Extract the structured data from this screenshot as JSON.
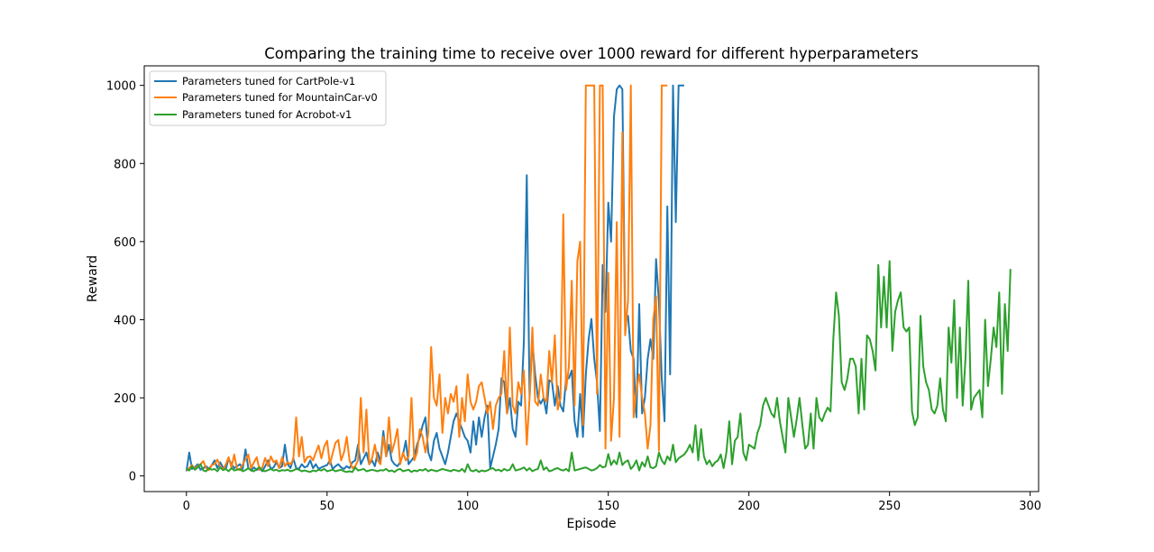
{
  "chart_data": {
    "type": "line",
    "title": "Comparing the training time to receive over 1000 reward for different hyperparameters",
    "xlabel": "Episode",
    "ylabel": "Reward",
    "xlim": [
      -15,
      303
    ],
    "ylim": [
      -40,
      1050
    ],
    "xticks": [
      0,
      50,
      100,
      150,
      200,
      250,
      300
    ],
    "yticks": [
      0,
      200,
      400,
      600,
      800,
      1000
    ],
    "legend_position": "upper-left",
    "grid": false,
    "series": [
      {
        "name": "Parameters tuned for CartPole-v1",
        "color": "#1f77b4",
        "values": [
          12,
          60,
          18,
          22,
          30,
          16,
          20,
          25,
          18,
          28,
          40,
          20,
          35,
          22,
          18,
          45,
          30,
          20,
          25,
          30,
          18,
          68,
          20,
          14,
          22,
          15,
          20,
          12,
          25,
          40,
          18,
          22,
          35,
          20,
          25,
          80,
          30,
          20,
          45,
          20,
          18,
          30,
          22,
          25,
          40,
          20,
          30,
          18,
          22,
          25,
          28,
          40,
          18,
          25,
          30,
          22,
          18,
          25,
          20,
          35,
          40,
          80,
          30,
          45,
          60,
          30,
          40,
          25,
          60,
          35,
          115,
          50,
          80,
          40,
          30,
          25,
          35,
          55,
          90,
          30,
          40,
          50,
          80,
          100,
          130,
          150,
          60,
          40,
          90,
          110,
          70,
          50,
          30,
          60,
          100,
          140,
          160,
          140,
          120,
          100,
          90,
          60,
          140,
          80,
          150,
          100,
          150,
          180,
          20,
          50,
          80,
          120,
          250,
          240,
          160,
          200,
          120,
          100,
          190,
          180,
          345,
          770,
          200,
          345,
          260,
          200,
          185,
          200,
          160,
          245,
          240,
          180,
          230,
          180,
          165,
          250,
          250,
          270,
          140,
          100,
          210,
          100,
          260,
          350,
          402,
          300,
          240,
          115,
          540,
          420,
          700,
          600,
          920,
          990,
          1000,
          990,
          400,
          410,
          320,
          300,
          150,
          440,
          160,
          200,
          300,
          350,
          300,
          555,
          445,
          250,
          140,
          690,
          260,
          1000,
          650,
          1000,
          1000,
          1000
        ],
        "note": ""
      },
      {
        "name": "Parameters tuned for MountainCar-v0",
        "color": "#ff7f0e",
        "values": [
          14,
          20,
          28,
          18,
          25,
          30,
          38,
          20,
          15,
          28,
          30,
          42,
          24,
          16,
          30,
          48,
          22,
          55,
          18,
          15,
          30,
          42,
          55,
          20,
          35,
          48,
          15,
          22,
          46,
          25,
          50,
          35,
          40,
          20,
          48,
          25,
          35,
          30,
          42,
          150,
          50,
          100,
          35,
          48,
          50,
          40,
          60,
          78,
          45,
          75,
          90,
          30,
          58,
          85,
          92,
          40,
          60,
          100,
          40,
          20,
          25,
          40,
          200,
          60,
          170,
          30,
          45,
          80,
          40,
          30,
          100,
          50,
          150,
          60,
          85,
          120,
          30,
          60,
          40,
          50,
          200,
          40,
          60,
          120,
          100,
          60,
          110,
          330,
          200,
          180,
          260,
          110,
          200,
          160,
          210,
          190,
          230,
          100,
          200,
          140,
          260,
          190,
          170,
          190,
          230,
          240,
          200,
          160,
          190,
          120,
          180,
          200,
          210,
          320,
          160,
          380,
          180,
          160,
          240,
          210,
          270,
          80,
          200,
          380,
          190,
          180,
          260,
          200,
          190,
          320,
          240,
          360,
          170,
          200,
          670,
          220,
          280,
          500,
          180,
          550,
          600,
          130,
          1000,
          1000,
          1000,
          1000,
          210,
          1000,
          1000,
          70,
          520,
          90,
          200,
          650,
          100,
          880,
          360,
          450,
          1000,
          150,
          220,
          260,
          200,
          160,
          70,
          130,
          400,
          460,
          65,
          1000,
          1000,
          1000
        ],
        "note": ""
      },
      {
        "name": "Parameters tuned for Acrobot-v1",
        "color": "#2ca02c",
        "values": [
          18,
          14,
          25,
          16,
          22,
          30,
          14,
          12,
          20,
          16,
          18,
          12,
          22,
          15,
          18,
          12,
          20,
          14,
          16,
          18,
          12,
          15,
          20,
          14,
          12,
          18,
          22,
          14,
          12,
          15,
          18,
          14,
          16,
          12,
          15,
          14,
          16,
          12,
          14,
          18,
          16,
          12,
          14,
          12,
          10,
          14,
          12,
          16,
          14,
          18,
          12,
          14,
          16,
          12,
          14,
          16,
          12,
          10,
          12,
          10,
          22,
          14,
          16,
          18,
          12,
          14,
          16,
          14,
          12,
          15,
          14,
          18,
          12,
          14,
          10,
          16,
          18,
          12,
          14,
          16,
          10,
          14,
          12,
          16,
          14,
          18,
          12,
          16,
          14,
          12,
          15,
          18,
          16,
          14,
          12,
          16,
          14,
          12,
          18,
          10,
          30,
          14,
          12,
          16,
          10,
          14,
          12,
          14,
          18,
          20,
          14,
          16,
          12,
          18,
          14,
          16,
          30,
          14,
          16,
          18,
          22,
          14,
          20,
          12,
          16,
          18,
          40,
          16,
          22,
          12,
          14,
          18,
          20,
          16,
          14,
          18,
          12,
          60,
          14,
          16,
          18,
          20,
          22,
          18,
          14,
          16,
          20,
          28,
          22,
          24,
          56,
          28,
          40,
          30,
          60,
          28,
          36,
          40,
          18,
          26,
          40,
          14,
          35,
          24,
          50,
          22,
          20,
          25,
          60,
          40,
          30,
          50,
          40,
          80,
          35,
          45,
          50,
          55,
          65,
          80,
          60,
          130,
          40,
          120,
          50,
          30,
          40,
          25,
          35,
          40,
          55,
          20,
          60,
          140,
          30,
          90,
          100,
          160,
          60,
          40,
          80,
          75,
          70,
          110,
          130,
          180,
          200,
          180,
          160,
          150,
          200,
          140,
          100,
          60,
          200,
          150,
          100,
          145,
          200,
          130,
          70,
          80,
          160,
          70,
          200,
          150,
          140,
          160,
          175,
          165,
          350,
          470,
          410,
          240,
          220,
          250,
          300,
          300,
          280,
          160,
          300,
          170,
          360,
          350,
          320,
          270,
          540,
          380,
          510,
          380,
          550,
          320,
          420,
          450,
          470,
          380,
          370,
          380,
          165,
          130,
          150,
          410,
          280,
          240,
          220,
          170,
          160,
          180,
          250,
          170,
          140,
          380,
          290,
          450,
          200,
          380,
          180,
          300,
          500,
          170,
          200,
          210,
          220,
          150,
          400,
          230,
          300,
          380,
          330,
          470,
          210,
          440,
          320,
          530
        ]
      }
    ]
  }
}
